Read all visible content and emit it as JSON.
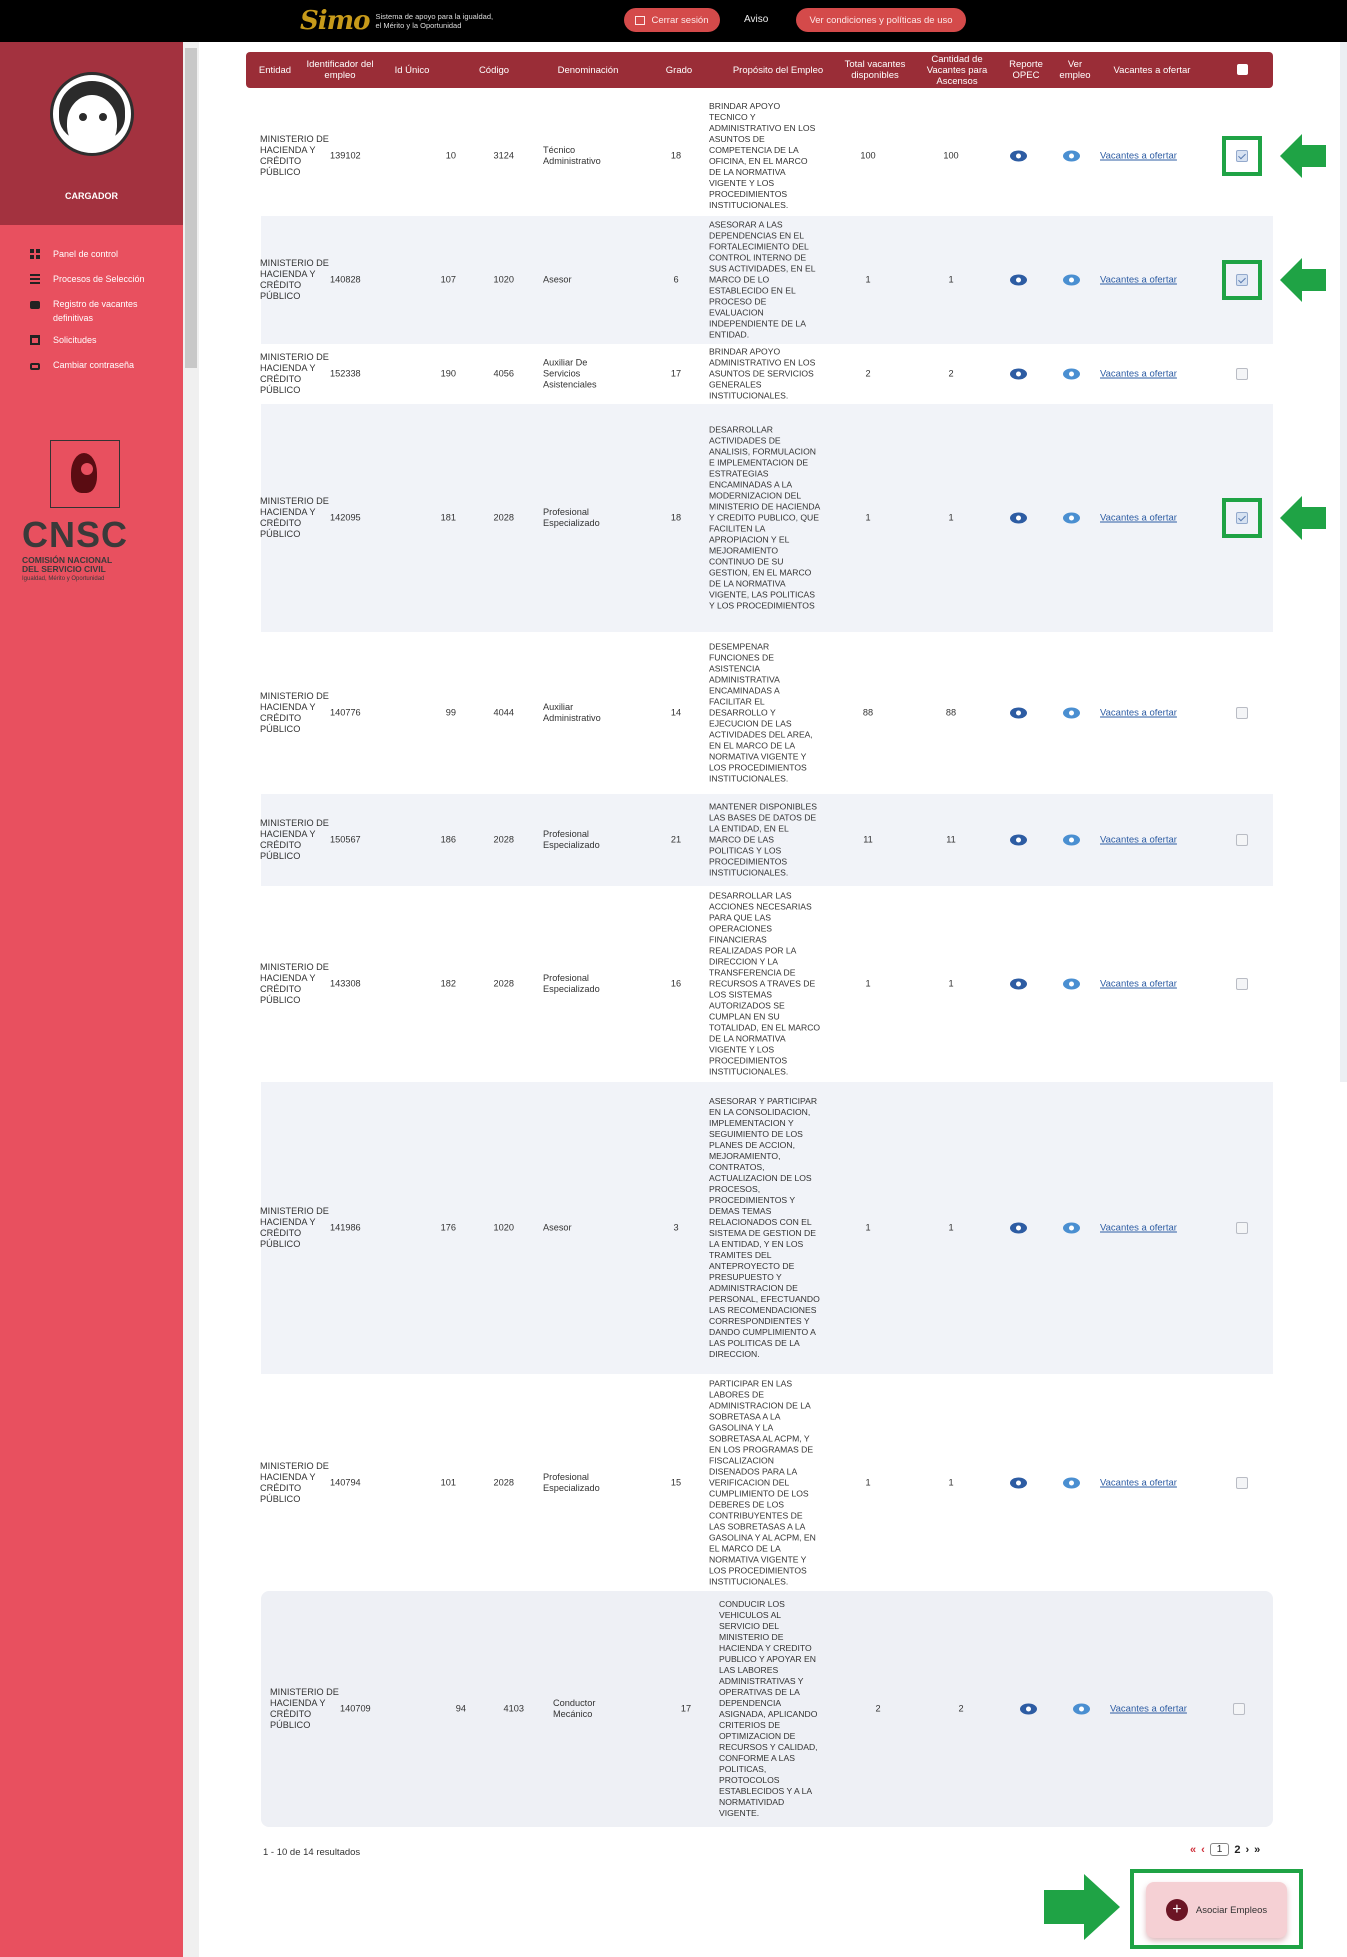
{
  "header": {
    "logo_mark": "Simo",
    "logo_text": "Sistema de apoyo para la igualdad, el Mérito y la Oportunidad",
    "logout": "Cerrar sesión",
    "notice": "Aviso",
    "conditions": "Ver condiciones y políticas de uso"
  },
  "sidebar": {
    "role": "CARGADOR",
    "items": [
      {
        "label": "Panel de control",
        "icon": "dashboard-icon"
      },
      {
        "label": "Procesos de Selección",
        "icon": "list-icon"
      },
      {
        "label": "Registro de vacantes definitivas",
        "icon": "briefcase-icon"
      },
      {
        "label": "Solicitudes",
        "icon": "calendar-icon"
      },
      {
        "label": "Cambiar contraseña",
        "icon": "lock-icon"
      }
    ],
    "brand": {
      "title": "CNSC",
      "subtitle1": "COMISIÓN NACIONAL",
      "subtitle2": "DEL SERVICIO CIVIL",
      "tagline": "Igualdad, Mérito y Oportunidad"
    }
  },
  "table": {
    "headers": {
      "entidad": "Entidad",
      "identificador": "Identificador del empleo",
      "id_unico": "Id Único",
      "codigo": "Código",
      "denominacion": "Denominación",
      "grado": "Grado",
      "proposito": "Propósito del Empleo",
      "total_vacantes": "Total vacantes disponibles",
      "vacantes_ascensos": "Cantidad de Vacantes para Ascensos",
      "reporte_opec": "Reporte OPEC",
      "ver_empleo": "Ver empleo",
      "vacantes_ofertar": "Vacantes a ofertar"
    },
    "rows": [
      {
        "entidad": "MINISTERIO DE HACIENDA Y CRÉDITO PÚBLICO",
        "identificador": "139102",
        "id_unico": "10",
        "codigo": "3124",
        "denominacion": "Técnico Administrativo",
        "grado": "18",
        "proposito": "BRINDAR APOYO TECNICO Y ADMINISTRATIVO EN LOS ASUNTOS DE COMPETENCIA DE LA OFICINA, EN EL MARCO DE LA NORMATIVA VIGENTE Y LOS PROCEDIMIENTOS INSTITUCIONALES.",
        "total": "100",
        "ascensos": "100",
        "link": "Vacantes a ofertar",
        "checked": true
      },
      {
        "entidad": "MINISTERIO DE HACIENDA Y CRÉDITO PÚBLICO",
        "identificador": "140828",
        "id_unico": "107",
        "codigo": "1020",
        "denominacion": "Asesor",
        "grado": "6",
        "proposito": "ASESORAR A LAS DEPENDENCIAS EN EL FORTALECIMIENTO DEL CONTROL INTERNO DE SUS ACTIVIDADES, EN EL MARCO DE LO ESTABLECIDO EN EL PROCESO DE EVALUACION INDEPENDIENTE DE LA ENTIDAD.",
        "total": "1",
        "ascensos": "1",
        "link": "Vacantes a ofertar",
        "checked": true
      },
      {
        "entidad": "MINISTERIO DE HACIENDA Y CRÉDITO PÚBLICO",
        "identificador": "152338",
        "id_unico": "190",
        "codigo": "4056",
        "denominacion": "Auxiliar De Servicios Asistenciales",
        "grado": "17",
        "proposito": "BRINDAR APOYO ADMINISTRATIVO EN LOS ASUNTOS DE SERVICIOS GENERALES INSTITUCIONALES.",
        "total": "2",
        "ascensos": "2",
        "link": "Vacantes a ofertar",
        "checked": false
      },
      {
        "entidad": "MINISTERIO DE HACIENDA Y CRÉDITO PÚBLICO",
        "identificador": "142095",
        "id_unico": "181",
        "codigo": "2028",
        "denominacion": "Profesional Especializado",
        "grado": "18",
        "proposito": "DESARROLLAR ACTIVIDADES DE ANALISIS, FORMULACION E IMPLEMENTACION DE ESTRATEGIAS ENCAMINADAS A LA MODERNIZACION DEL MINISTERIO DE HACIENDA Y CREDITO PUBLICO, QUE FACILITEN LA APROPIACION Y EL MEJORAMIENTO CONTINUO DE SU GESTION, EN EL MARCO DE LA NORMATIVA VIGENTE, LAS POLITICAS Y LOS PROCEDIMIENTOS",
        "total": "1",
        "ascensos": "1",
        "link": "Vacantes a ofertar",
        "checked": true
      },
      {
        "entidad": "MINISTERIO DE HACIENDA Y CRÉDITO PÚBLICO",
        "identificador": "140776",
        "id_unico": "99",
        "codigo": "4044",
        "denominacion": "Auxiliar Administrativo",
        "grado": "14",
        "proposito": "DESEMPENAR FUNCIONES DE ASISTENCIA ADMINISTRATIVA ENCAMINADAS A FACILITAR EL DESARROLLO Y EJECUCION DE LAS ACTIVIDADES DEL AREA, EN EL MARCO DE LA NORMATIVA VIGENTE Y LOS PROCEDIMIENTOS INSTITUCIONALES.",
        "total": "88",
        "ascensos": "88",
        "link": "Vacantes a ofertar",
        "checked": false
      },
      {
        "entidad": "MINISTERIO DE HACIENDA Y CRÉDITO PÚBLICO",
        "identificador": "150567",
        "id_unico": "186",
        "codigo": "2028",
        "denominacion": "Profesional Especializado",
        "grado": "21",
        "proposito": "MANTENER DISPONIBLES LAS BASES DE DATOS DE LA ENTIDAD, EN EL MARCO DE LAS POLITICAS Y LOS PROCEDIMIENTOS INSTITUCIONALES.",
        "total": "11",
        "ascensos": "11",
        "link": "Vacantes a ofertar",
        "checked": false
      },
      {
        "entidad": "MINISTERIO DE HACIENDA Y CRÉDITO PÚBLICO",
        "identificador": "143308",
        "id_unico": "182",
        "codigo": "2028",
        "denominacion": "Profesional Especializado",
        "grado": "16",
        "proposito": "DESARROLLAR LAS ACCIONES NECESARIAS PARA QUE LAS OPERACIONES FINANCIERAS REALIZADAS POR LA DIRECCION Y LA TRANSFERENCIA DE RECURSOS A TRAVES DE LOS SISTEMAS AUTORIZADOS SE CUMPLAN EN SU TOTALIDAD, EN EL MARCO DE LA NORMATIVA VIGENTE Y LOS PROCEDIMIENTOS INSTITUCIONALES.",
        "total": "1",
        "ascensos": "1",
        "link": "Vacantes a ofertar",
        "checked": false
      },
      {
        "entidad": "MINISTERIO DE HACIENDA Y CRÉDITO PÚBLICO",
        "identificador": "141986",
        "id_unico": "176",
        "codigo": "1020",
        "denominacion": "Asesor",
        "grado": "3",
        "proposito": "ASESORAR Y PARTICIPAR EN LA CONSOLIDACION, IMPLEMENTACION Y SEGUIMIENTO DE LOS PLANES DE ACCION, MEJORAMIENTO, CONTRATOS, ACTUALIZACION DE LOS PROCESOS, PROCEDIMIENTOS Y DEMAS TEMAS RELACIONADOS CON EL SISTEMA DE GESTION DE LA ENTIDAD, Y EN LOS TRAMITES DEL ANTEPROYECTO DE PRESUPUESTO Y ADMINISTRACION DE PERSONAL, EFECTUANDO LAS RECOMENDACIONES CORRESPONDIENTES Y DANDO CUMPLIMIENTO A LAS POLITICAS DE LA DIRECCION.",
        "total": "1",
        "ascensos": "1",
        "link": "Vacantes a ofertar",
        "checked": false
      },
      {
        "entidad": "MINISTERIO DE HACIENDA Y CRÉDITO PÚBLICO",
        "identificador": "140794",
        "id_unico": "101",
        "codigo": "2028",
        "denominacion": "Profesional Especializado",
        "grado": "15",
        "proposito": "PARTICIPAR EN LAS LABORES DE ADMINISTRACION DE LA SOBRETASA A LA GASOLINA Y LA SOBRETASA AL ACPM, Y EN LOS PROGRAMAS DE FISCALIZACION DISENADOS PARA LA VERIFICACION DEL CUMPLIMIENTO DE LOS DEBERES DE LOS CONTRIBUYENTES DE LAS SOBRETASAS A LA GASOLINA Y AL ACPM, EN EL MARCO DE LA NORMATIVA VIGENTE Y LOS PROCEDIMIENTOS INSTITUCIONALES.",
        "total": "1",
        "ascensos": "1",
        "link": "Vacantes a ofertar",
        "checked": false
      },
      {
        "entidad": "MINISTERIO DE HACIENDA Y CRÉDITO PÚBLICO",
        "identificador": "140709",
        "id_unico": "94",
        "codigo": "4103",
        "denominacion": "Conductor Mecánico",
        "grado": "17",
        "proposito": "CONDUCIR LOS VEHICULOS AL SERVICIO DEL MINISTERIO DE HACIENDA Y CREDITO PUBLICO Y APOYAR EN LAS LABORES ADMINISTRATIVAS Y OPERATIVAS DE LA DEPENDENCIA ASIGNADA, APLICANDO CRITERIOS DE OPTIMIZACION DE RECURSOS Y CALIDAD, CONFORME A LAS POLITICAS, PROTOCOLOS ESTABLECIDOS Y A LA NORMATIVIDAD VIGENTE.",
        "total": "2",
        "ascensos": "2",
        "link": "Vacantes a ofertar",
        "checked": false
      }
    ]
  },
  "footer": {
    "results": "1 - 10 de 14 resultados",
    "pager": {
      "first": "«",
      "prev": "‹",
      "current": "1",
      "page2": "2",
      "next": "›",
      "last": "»"
    },
    "associate_button": "Asociar Empleos"
  },
  "colors": {
    "header_bar": "#9a2d37",
    "sidebar": "#e8505f",
    "sidebar_top": "#a3323f",
    "highlight": "#1fa345"
  }
}
